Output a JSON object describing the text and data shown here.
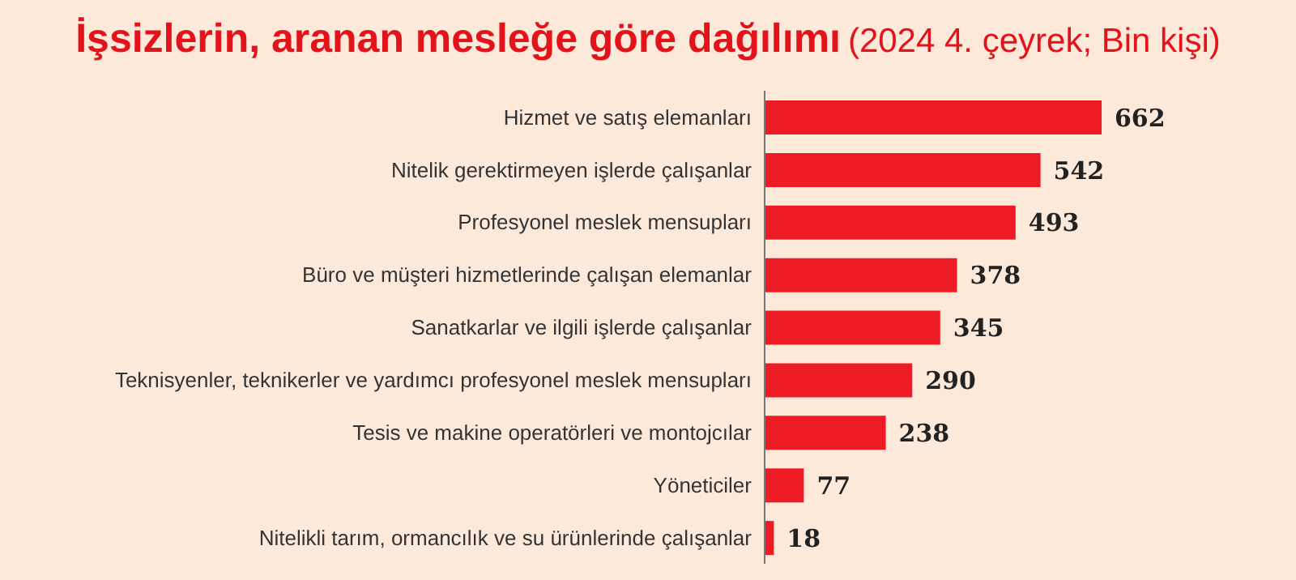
{
  "chart_data": {
    "type": "bar",
    "orientation": "horizontal",
    "title": "İşsizlerin, aranan mesleğe göre dağılımı",
    "subtitle": "(2024 4. çeyrek; Bin kişi)",
    "categories": [
      "Hizmet ve satış elemanları",
      "Nitelik gerektirmeyen işlerde çalışanlar",
      "Profesyonel meslek mensupları",
      "Büro ve müşteri hizmetlerinde çalışan elemanlar",
      "Sanatkarlar ve ilgili işlerde çalışanlar",
      "Teknisyenler, teknikerler ve yardımcı profesyonel meslek mensupları",
      "Tesis ve makine operatörleri ve montojcılar",
      "Yöneticiler",
      "Nitelikli tarım, ormancılık ve su ürünlerinde çalışanlar"
    ],
    "values": [
      662,
      542,
      493,
      378,
      345,
      290,
      238,
      77,
      18
    ],
    "color": "#ed1c24",
    "data_labels": true,
    "grid": false,
    "legend": false
  }
}
